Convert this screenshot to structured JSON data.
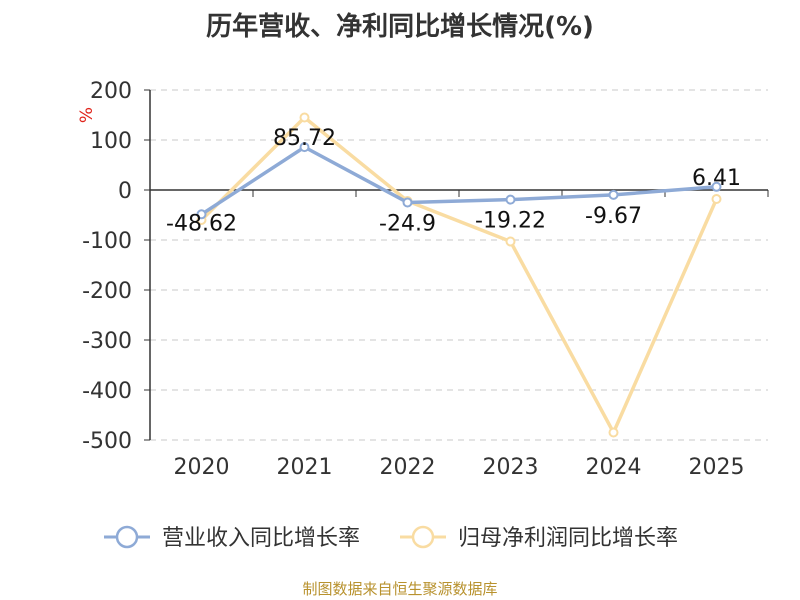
{
  "chart_data": {
    "type": "line",
    "title": "历年营收、净利同比增长情况(%)",
    "ylabel": "%",
    "x": [
      "2020",
      "2021",
      "2022",
      "2023",
      "2024",
      "2025"
    ],
    "ylim": [
      -500,
      200
    ],
    "yticks": [
      200,
      100,
      0,
      -100,
      -200,
      -300,
      -400,
      -500
    ],
    "grid": true,
    "legend_position": "bottom",
    "series": [
      {
        "name": "营业收入同比增长率",
        "color": "#8eaad6",
        "values": [
          -48.62,
          85.72,
          -24.9,
          -19.22,
          -9.67,
          6.41
        ],
        "labels": [
          "-48.62",
          "85.72",
          "-24.9",
          "-19.22",
          "-9.67",
          "6.41"
        ]
      },
      {
        "name": "归母净利润同比增长率",
        "color": "#f9dca2",
        "values": [
          -60,
          145,
          -22,
          -103,
          -485,
          -18
        ]
      }
    ]
  },
  "footer": {
    "source": "制图数据来自恒生聚源数据库"
  }
}
